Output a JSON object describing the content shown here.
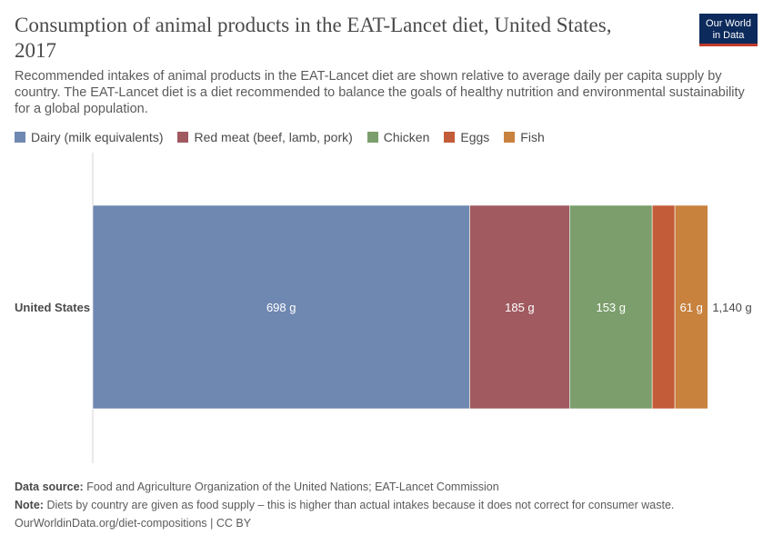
{
  "header": {
    "title": "Consumption of animal products in the EAT-Lancet diet, United States, 2017",
    "subtitle": "Recommended intakes of animal products in the EAT-Lancet diet are shown relative to average daily per capita supply by country. The EAT-Lancet diet is a diet recommended to balance the goals of healthy nutrition and environmental sustainability for a global population.",
    "logo_line1": "Our World",
    "logo_line2": "in Data"
  },
  "footer": {
    "source_label": "Data source:",
    "source_text": "Food and Agriculture Organization of the United Nations; EAT-Lancet Commission",
    "note_label": "Note:",
    "note_text": "Diets by country are given as food supply – this is higher than actual intakes because it does not correct for consumer waste.",
    "url": "OurWorldinData.org/diet-compositions | CC BY"
  },
  "chart_data": {
    "type": "bar",
    "orientation": "horizontal",
    "stacked": true,
    "categories": [
      "United States"
    ],
    "unit": "g",
    "series": [
      {
        "name": "Dairy (milk equivalents)",
        "values": [
          698
        ],
        "labels": [
          "698 g"
        ],
        "color": "#6f88b2"
      },
      {
        "name": "Red meat (beef, lamb, pork)",
        "values": [
          185
        ],
        "labels": [
          "185 g"
        ],
        "color": "#a05a60"
      },
      {
        "name": "Chicken",
        "values": [
          153
        ],
        "labels": [
          "153 g"
        ],
        "color": "#7b9e6c"
      },
      {
        "name": "Eggs",
        "values": [
          42
        ],
        "labels": [
          ""
        ],
        "color": "#c35c38"
      },
      {
        "name": "Fish",
        "values": [
          61
        ],
        "labels": [
          "61 g"
        ],
        "color": "#c8823e"
      }
    ],
    "totals": [
      "1,140 g"
    ],
    "legend_position": "top-left",
    "grid": false
  }
}
